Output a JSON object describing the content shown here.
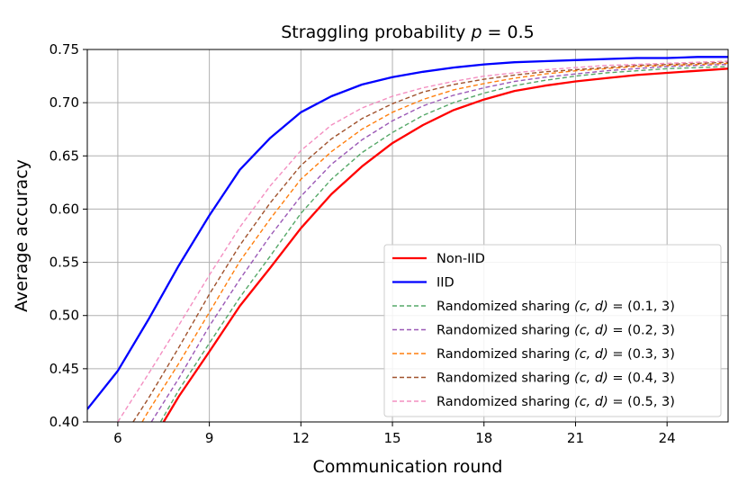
{
  "chart_data": {
    "type": "line",
    "title": "Straggling probability p = 0.5",
    "title_prefix": "Straggling probability ",
    "title_var": "p",
    "title_suffix": " = 0.5",
    "xlabel": "Communication round",
    "ylabel": "Average accuracy",
    "xlim": [
      5,
      26
    ],
    "ylim": [
      0.4,
      0.75
    ],
    "xticks": [
      6,
      9,
      12,
      15,
      18,
      21,
      24
    ],
    "yticks": [
      0.4,
      0.45,
      0.5,
      0.55,
      0.6,
      0.65,
      0.7,
      0.75
    ],
    "xtick_labels": [
      "6",
      "9",
      "12",
      "15",
      "18",
      "21",
      "24"
    ],
    "ytick_labels": [
      "0.40",
      "0.45",
      "0.50",
      "0.55",
      "0.60",
      "0.65",
      "0.70",
      "0.75"
    ],
    "grid": true,
    "legend_position": "lower-right",
    "series": [
      {
        "name": "Non-IID",
        "name_parts": [
          "Non-IID"
        ],
        "color": "#ff0000",
        "style": "solid",
        "x": [
          7.5,
          8,
          9,
          10,
          11,
          12,
          13,
          14,
          15,
          16,
          17,
          18,
          19,
          20,
          21,
          22,
          23,
          24,
          25,
          26
        ],
        "y": [
          0.4,
          0.424,
          0.466,
          0.509,
          0.545,
          0.582,
          0.614,
          0.64,
          0.662,
          0.679,
          0.693,
          0.703,
          0.711,
          0.716,
          0.72,
          0.723,
          0.726,
          0.728,
          0.73,
          0.732
        ]
      },
      {
        "name": "IID",
        "name_parts": [
          "IID"
        ],
        "color": "#0000ff",
        "style": "solid",
        "x": [
          5,
          6,
          7,
          8,
          9,
          10,
          11,
          12,
          13,
          14,
          15,
          16,
          17,
          18,
          19,
          20,
          21,
          22,
          23,
          24,
          25,
          26
        ],
        "y": [
          0.412,
          0.448,
          0.496,
          0.547,
          0.594,
          0.637,
          0.667,
          0.691,
          0.706,
          0.717,
          0.724,
          0.729,
          0.733,
          0.736,
          0.738,
          0.739,
          0.74,
          0.741,
          0.742,
          0.742,
          0.743,
          0.743
        ]
      },
      {
        "name": "Randomized sharing (c, d) = (0.1, 3)",
        "name_parts": [
          "Randomized sharing ",
          "(c, d)",
          " = (0.1, 3)"
        ],
        "color": "#55a868",
        "style": "dashed",
        "x": [
          7.4,
          8,
          9,
          10,
          11,
          12,
          13,
          14,
          15,
          16,
          17,
          18,
          19,
          20,
          21,
          22,
          23,
          24,
          25,
          26
        ],
        "y": [
          0.4,
          0.43,
          0.474,
          0.517,
          0.556,
          0.596,
          0.628,
          0.653,
          0.672,
          0.688,
          0.7,
          0.709,
          0.716,
          0.721,
          0.725,
          0.728,
          0.73,
          0.732,
          0.733,
          0.734
        ]
      },
      {
        "name": "Randomized sharing (c, d) = (0.2, 3)",
        "name_parts": [
          "Randomized sharing ",
          "(c, d)",
          " = (0.2, 3)"
        ],
        "color": "#9b59b6",
        "style": "dashed",
        "x": [
          7.1,
          8,
          9,
          10,
          11,
          12,
          13,
          14,
          15,
          16,
          17,
          18,
          19,
          20,
          21,
          22,
          23,
          24,
          25,
          26
        ],
        "y": [
          0.4,
          0.441,
          0.49,
          0.534,
          0.575,
          0.612,
          0.642,
          0.665,
          0.683,
          0.697,
          0.707,
          0.714,
          0.72,
          0.724,
          0.727,
          0.73,
          0.732,
          0.734,
          0.735,
          0.736
        ]
      },
      {
        "name": "Randomized sharing (c, d) = (0.3, 3)",
        "name_parts": [
          "Randomized sharing ",
          "(c, d)",
          " = (0.3, 3)"
        ],
        "color": "#ff7f0e",
        "style": "dashed",
        "x": [
          6.8,
          7,
          8,
          9,
          10,
          11,
          12,
          13,
          14,
          15,
          16,
          17,
          18,
          19,
          20,
          21,
          22,
          23,
          24,
          25,
          26
        ],
        "y": [
          0.4,
          0.41,
          0.455,
          0.503,
          0.551,
          0.591,
          0.628,
          0.654,
          0.675,
          0.691,
          0.703,
          0.712,
          0.718,
          0.723,
          0.727,
          0.73,
          0.732,
          0.734,
          0.735,
          0.736,
          0.737
        ]
      },
      {
        "name": "Randomized sharing (c, d) = (0.4, 3)",
        "name_parts": [
          "Randomized sharing ",
          "(c, d)",
          " = (0.4, 3)"
        ],
        "color": "#a0522d",
        "style": "dashed",
        "x": [
          6.5,
          7,
          8,
          9,
          10,
          11,
          12,
          13,
          14,
          15,
          16,
          17,
          18,
          19,
          20,
          21,
          22,
          23,
          24,
          25,
          26
        ],
        "y": [
          0.4,
          0.422,
          0.47,
          0.52,
          0.566,
          0.606,
          0.641,
          0.666,
          0.685,
          0.699,
          0.71,
          0.717,
          0.722,
          0.726,
          0.729,
          0.731,
          0.733,
          0.735,
          0.736,
          0.737,
          0.738
        ]
      },
      {
        "name": "Randomized sharing (c, d) = (0.5, 3)",
        "name_parts": [
          "Randomized sharing ",
          "(c, d)",
          " = (0.5, 3)"
        ],
        "color": "#f48fc1",
        "style": "dashed",
        "x": [
          6.0,
          7,
          8,
          9,
          10,
          11,
          12,
          13,
          14,
          15,
          16,
          17,
          18,
          19,
          20,
          21,
          22,
          23,
          24,
          25,
          26
        ],
        "y": [
          0.4,
          0.445,
          0.491,
          0.538,
          0.583,
          0.622,
          0.655,
          0.679,
          0.695,
          0.706,
          0.714,
          0.72,
          0.725,
          0.728,
          0.731,
          0.733,
          0.735,
          0.736,
          0.737,
          0.738,
          0.739
        ]
      }
    ]
  }
}
